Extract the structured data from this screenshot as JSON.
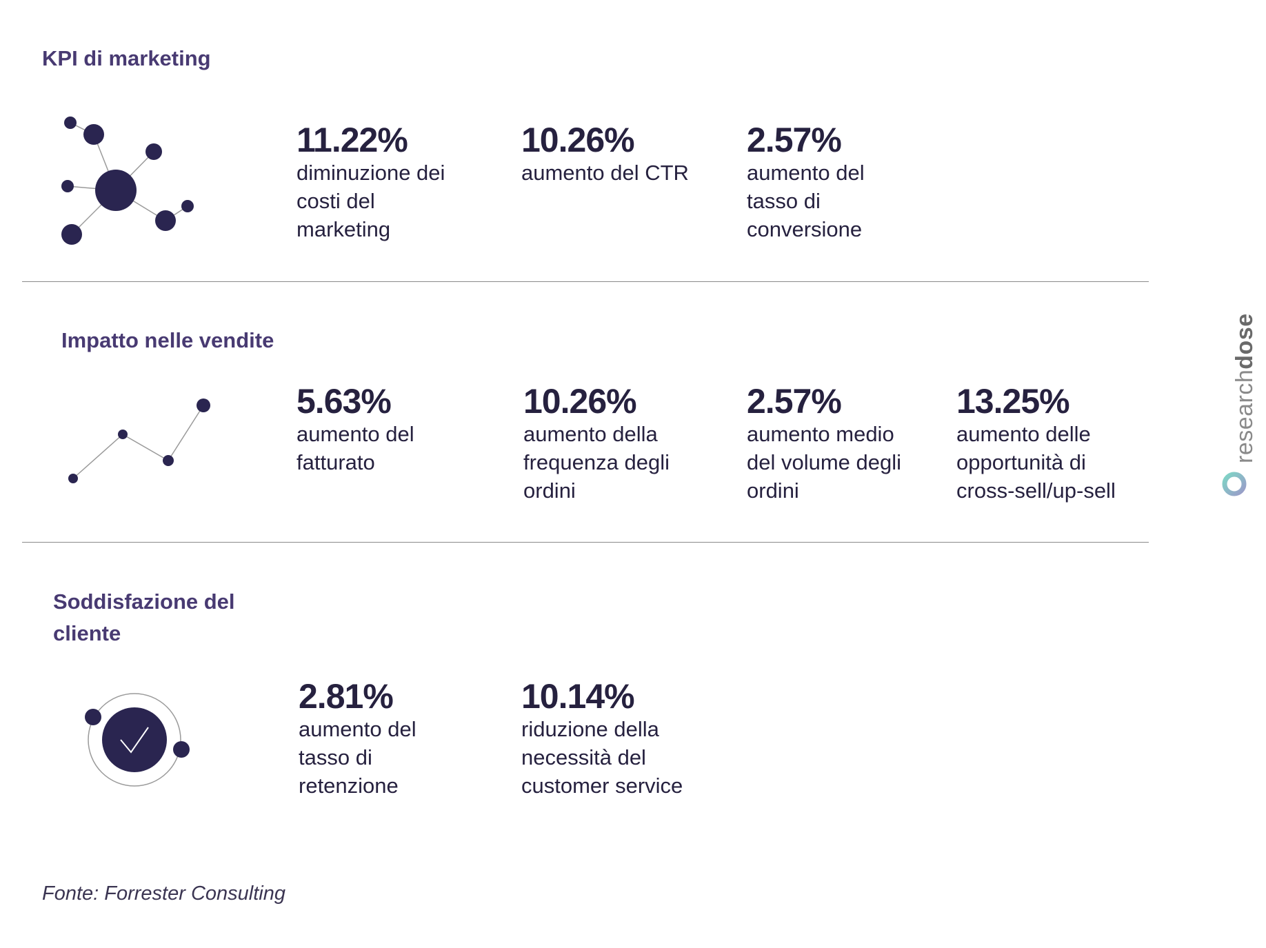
{
  "sections": [
    {
      "title": "KPI di marketing",
      "icon": "network-icon",
      "stats": [
        {
          "value": "11.22%",
          "desc": [
            "diminuzione dei",
            "costi del",
            "marketing"
          ]
        },
        {
          "value": "10.26%",
          "desc": [
            "aumento del CTR"
          ]
        },
        {
          "value": "2.57%",
          "desc": [
            "aumento del",
            "tasso di",
            "conversione"
          ]
        }
      ]
    },
    {
      "title": "Impatto nelle vendite",
      "icon": "line-trend-icon",
      "stats": [
        {
          "value": "5.63%",
          "desc": [
            "aumento del",
            "fatturato"
          ]
        },
        {
          "value": "10.26%",
          "desc": [
            "aumento della",
            "frequenza degli",
            "ordini"
          ]
        },
        {
          "value": "2.57%",
          "desc": [
            "aumento medio",
            "del volume degli",
            "ordini"
          ]
        },
        {
          "value": "13.25%",
          "desc": [
            "aumento delle",
            "opportunità di",
            "cross-sell/up-sell"
          ]
        }
      ]
    },
    {
      "title": [
        "Soddisfazione del",
        "cliente"
      ],
      "icon": "checkmark-circle-icon",
      "stats": [
        {
          "value": "2.81%",
          "desc": [
            "aumento del",
            "tasso di",
            "retenzione"
          ]
        },
        {
          "value": "10.14%",
          "desc": [
            "riduzione della",
            "necessità del",
            "customer service"
          ]
        }
      ]
    }
  ],
  "source": "Fonte: Forrester Consulting",
  "brand": {
    "light": "research",
    "bold": "dose",
    "icon": "researchdose-logo-icon"
  },
  "colors": {
    "dark": "#26213f",
    "title": "#483a72",
    "divider": "#8a8a8a",
    "brand_gray": "#8a8a8a"
  }
}
